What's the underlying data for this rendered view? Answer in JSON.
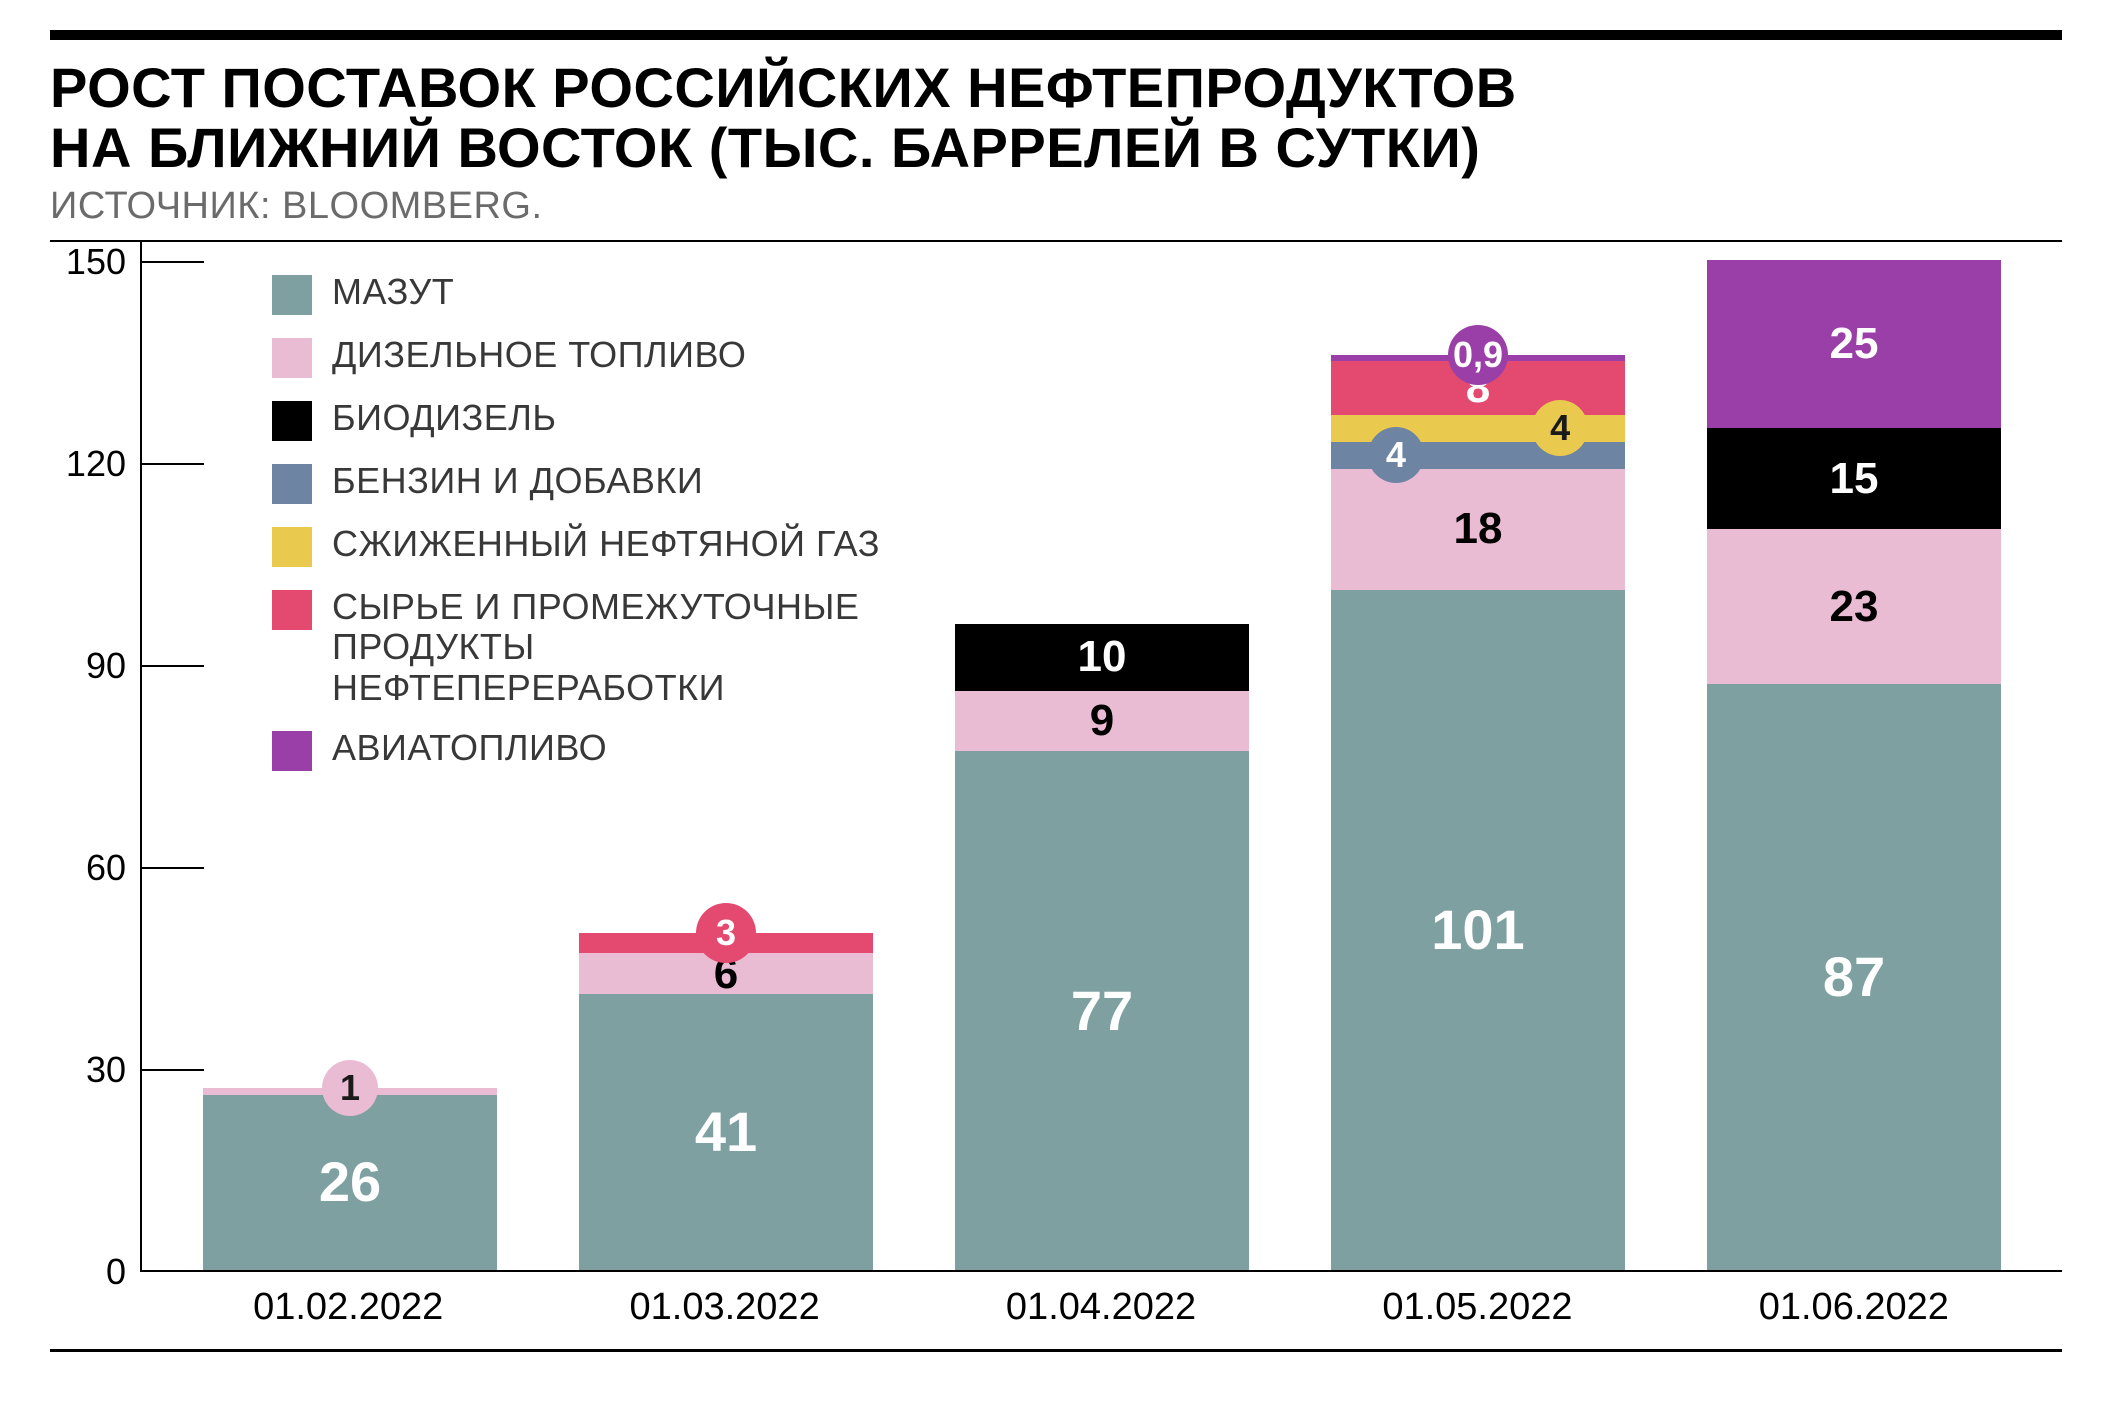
{
  "title_line1": "РОСТ ПОСТАВОК РОССИЙСКИХ НЕФТЕПРОДУКТОВ",
  "title_line2": "НА БЛИЖНИЙ ВОСТОК (ТЫС. БАРРЕЛЕЙ В СУТКИ)",
  "source": "ИСТОЧНИК: BLOOMBERG.",
  "chart": {
    "type": "stacked-bar",
    "y": {
      "min": 0,
      "max": 150,
      "ticks": [
        0,
        30,
        60,
        90,
        120,
        150
      ]
    },
    "colors": {
      "mazut": "#7ea0a0",
      "diesel": "#eabcd4",
      "biodiesel": "#000000",
      "gasoline": "#6d84a3",
      "lpg": "#e9c94e",
      "feedstock": "#e44a6f",
      "jetfuel": "#9b3fa8",
      "text_white": "#ffffff",
      "text_dark": "#1a1a1a",
      "axis": "#000000",
      "bg": "#ffffff",
      "source": "#6b6b6b"
    },
    "fontsize": {
      "title": 56,
      "source": 38,
      "legend": 36,
      "ytick": 36,
      "xlabel": 38,
      "value_big": 56,
      "value": 44,
      "bubble": 36
    },
    "legend": [
      {
        "key": "mazut",
        "label": "МАЗУТ"
      },
      {
        "key": "diesel",
        "label": "ДИЗЕЛЬНОЕ ТОПЛИВО"
      },
      {
        "key": "biodiesel",
        "label": "БИОДИЗЕЛЬ"
      },
      {
        "key": "gasoline",
        "label": "БЕНЗИН И ДОБАВКИ"
      },
      {
        "key": "lpg",
        "label": "СЖИЖЕННЫЙ НЕФТЯНОЙ ГАЗ"
      },
      {
        "key": "feedstock",
        "label": "СЫРЬЕ И ПРОМЕЖУТОЧНЫЕ ПРОДУКТЫ НЕФТЕПЕРЕРАБОТКИ"
      },
      {
        "key": "jetfuel",
        "label": "АВИАТОПЛИВО"
      }
    ],
    "categories": [
      "01.02.2022",
      "01.03.2022",
      "01.04.2022",
      "01.05.2022",
      "01.06.2022"
    ],
    "bars": [
      {
        "segments": [
          {
            "key": "mazut",
            "value": 26,
            "label": "26",
            "style": "big",
            "textcolor": "white"
          },
          {
            "key": "diesel",
            "value": 1,
            "label": "1",
            "bubble": true,
            "bubble_color": "#eabcd4",
            "bubble_size": 56,
            "textcolor": "dark",
            "bubble_pos": "center-top"
          }
        ]
      },
      {
        "segments": [
          {
            "key": "mazut",
            "value": 41,
            "label": "41",
            "style": "big",
            "textcolor": "white"
          },
          {
            "key": "diesel",
            "value": 6,
            "label": "6",
            "textcolor": "dark"
          },
          {
            "key": "feedstock",
            "value": 3,
            "label": "3",
            "bubble": true,
            "bubble_color": "#e44a6f",
            "bubble_size": 60,
            "textcolor": "white",
            "bubble_pos": "center-top"
          }
        ]
      },
      {
        "segments": [
          {
            "key": "mazut",
            "value": 77,
            "label": "77",
            "style": "big",
            "textcolor": "white"
          },
          {
            "key": "diesel",
            "value": 9,
            "label": "9",
            "textcolor": "dark"
          },
          {
            "key": "biodiesel",
            "value": 10,
            "label": "10",
            "textcolor": "white"
          }
        ]
      },
      {
        "segments": [
          {
            "key": "mazut",
            "value": 101,
            "label": "101",
            "style": "big",
            "textcolor": "white"
          },
          {
            "key": "diesel",
            "value": 18,
            "label": "18",
            "textcolor": "dark"
          },
          {
            "key": "gasoline",
            "value": 4,
            "label": "4",
            "bubble": true,
            "bubble_color": "#6d84a3",
            "bubble_size": 56,
            "textcolor": "white",
            "bubble_pos": "left"
          },
          {
            "key": "lpg",
            "value": 4,
            "label": "4",
            "bubble": true,
            "bubble_color": "#e9c94e",
            "bubble_size": 56,
            "textcolor": "dark",
            "bubble_pos": "right"
          },
          {
            "key": "feedstock",
            "value": 8,
            "label": "8",
            "textcolor": "white"
          },
          {
            "key": "jetfuel",
            "value": 0.9,
            "label": "0,9",
            "bubble": true,
            "bubble_color": "#9b3fa8",
            "bubble_size": 60,
            "textcolor": "white",
            "bubble_pos": "center-top"
          }
        ]
      },
      {
        "segments": [
          {
            "key": "mazut",
            "value": 87,
            "label": "87",
            "style": "big",
            "textcolor": "white"
          },
          {
            "key": "diesel",
            "value": 23,
            "label": "23",
            "textcolor": "dark"
          },
          {
            "key": "biodiesel",
            "value": 15,
            "label": "15",
            "textcolor": "white"
          },
          {
            "key": "jetfuel",
            "value": 25,
            "label": "25",
            "textcolor": "white"
          }
        ]
      }
    ]
  }
}
